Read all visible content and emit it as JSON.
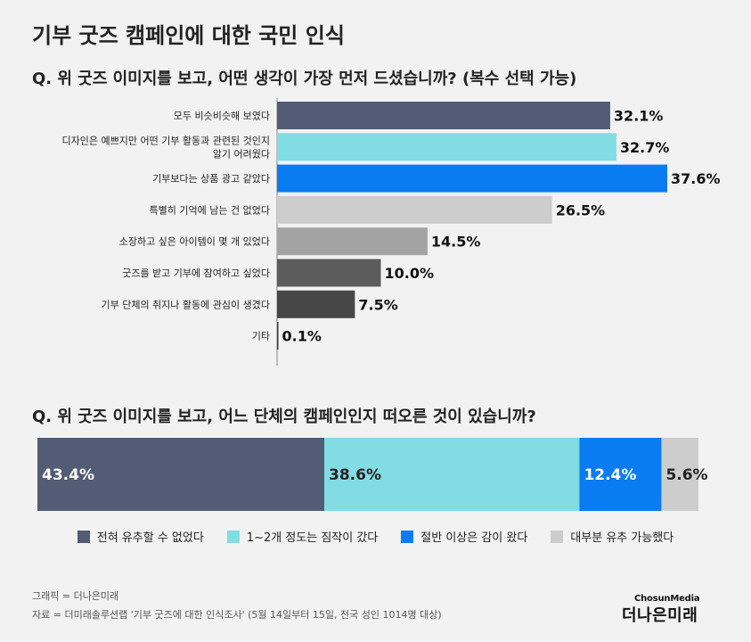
{
  "title": "기부 굿즈 캠페인에 대한 국민 인식",
  "question1": "Q. 위 굿즈 이미지를 보고, 어떤 생각이 가장 먼저 드셨습니까? (복수 선택 가능)",
  "question2": "Q. 위 굿즈 이미지를 보고, 어느 단체의 캠페인인지 떠오른 것이 있습니까?",
  "credit": "그래픽 = 더나은미래",
  "source": "자료 = 더미래솔루션랩 '기부 굿즈에 대한 인식조사' (5월 14일부터 15일, 전국 성인 1014명 대상)",
  "logo": {
    "top": "ChosunMedia",
    "main": "더나은미래"
  },
  "chart_data": [
    {
      "type": "bar",
      "orientation": "horizontal",
      "title": "Q. 위 굿즈 이미지를 보고, 어떤 생각이 가장 먼저 드셨습니까? (복수 선택 가능)",
      "categories": [
        [
          "모두 비슷비슷해 보였다"
        ],
        [
          "디자인은 예쁘지만 어떤 기부 활동과 관련된 것인지",
          "알기 어려웠다"
        ],
        [
          "기부보다는 상품 광고 같았다"
        ],
        [
          "특별히 기억에 남는 건 없었다"
        ],
        [
          "소장하고 싶은 아이템이 몇 개 있었다"
        ],
        [
          "굿즈를 받고 기부에 참여하고 싶었다"
        ],
        [
          "기부 단체의 취지나 활동에 관심이 생겼다"
        ],
        [
          "기타"
        ]
      ],
      "values": [
        32.1,
        32.7,
        37.6,
        26.5,
        14.5,
        10.0,
        7.5,
        0.1
      ],
      "value_labels": [
        "32.1%",
        "32.7%",
        "37.6%",
        "26.5%",
        "14.5%",
        "10.0%",
        "7.5%",
        "0.1%"
      ],
      "colors": [
        "#525c74",
        "#82dce3",
        "#0a7cf2",
        "#cdcdcd",
        "#a3a3a3",
        "#5c5c5c",
        "#474747",
        "#3a3a3a"
      ],
      "xlim": [
        0,
        37.6
      ],
      "grid": false
    },
    {
      "type": "bar",
      "orientation": "stacked-100",
      "title": "Q. 위 굿즈 이미지를 보고, 어느 단체의 캠페인인지 떠오른 것이 있습니까?",
      "series": [
        {
          "name": "전혀 유추할 수 없었다",
          "value": 43.4,
          "label": "43.4%",
          "color": "#525c74",
          "label_color": "#ffffff"
        },
        {
          "name": "1~2개 정도는 짐작이 갔다",
          "value": 38.6,
          "label": "38.6%",
          "color": "#82dce3",
          "label_color": "#222222"
        },
        {
          "name": "절반 이상은 감이 왔다",
          "value": 12.4,
          "label": "12.4%",
          "color": "#0a7cf2",
          "label_color": "#ffffff"
        },
        {
          "name": "대부분 유추 가능했다",
          "value": 5.6,
          "label": "5.6%",
          "color": "#cdcdcd",
          "label_color": "#222222"
        }
      ],
      "legend": "bottom-center"
    }
  ]
}
